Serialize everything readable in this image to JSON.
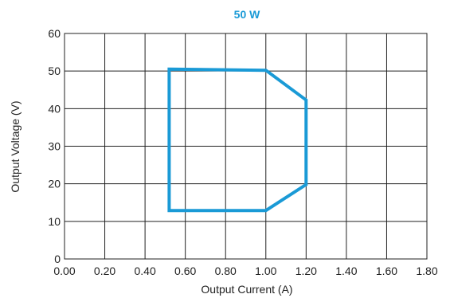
{
  "chart_data": {
    "type": "line",
    "title": "50 W",
    "xlabel": "Output Current (A)",
    "ylabel": "Output Voltage (V)",
    "xlim": [
      0,
      1.8
    ],
    "ylim": [
      0,
      60
    ],
    "x_ticks": [
      "0.00",
      "0.20",
      "0.40",
      "0.60",
      "0.80",
      "1.00",
      "1.20",
      "1.40",
      "1.60",
      "1.80"
    ],
    "y_ticks": [
      "0",
      "10",
      "20",
      "30",
      "40",
      "50",
      "60"
    ],
    "grid": true,
    "color": "#1a9ad6",
    "series": [
      {
        "closed": true,
        "points": [
          {
            "x": 0.52,
            "y": 50.5
          },
          {
            "x": 1.0,
            "y": 50.2
          },
          {
            "x": 1.2,
            "y": 42.3
          },
          {
            "x": 1.2,
            "y": 19.8
          },
          {
            "x": 1.0,
            "y": 12.9
          },
          {
            "x": 0.52,
            "y": 12.9
          }
        ]
      }
    ]
  }
}
